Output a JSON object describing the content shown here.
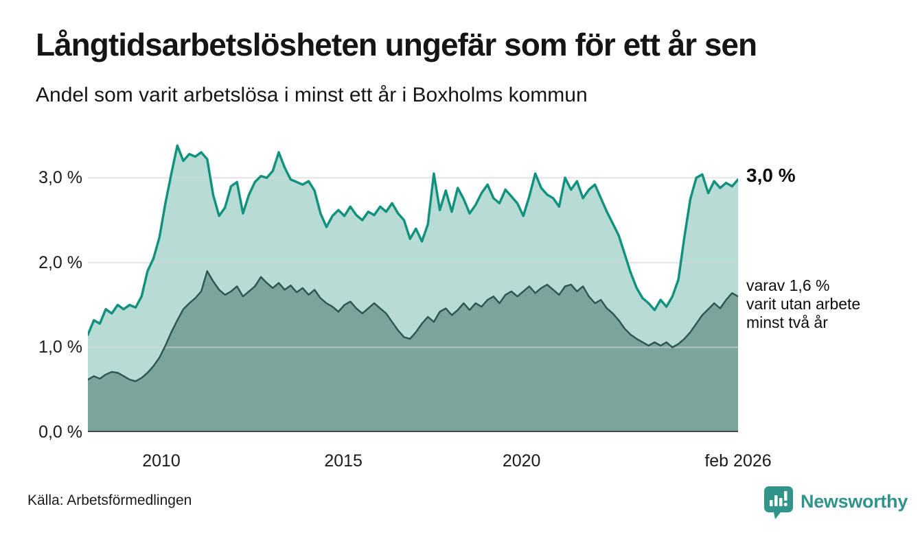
{
  "header": {
    "title": "Långtidsarbetslösheten ungefär som för ett år sen",
    "subtitle": "Andel som varit arbetslösa i minst ett år i Boxholms kommun"
  },
  "chart_data": {
    "type": "area",
    "title": "Långtidsarbetslösheten ungefär som för ett år sen",
    "subtitle": "Andel som varit arbetslösa i minst ett år i Boxholms kommun",
    "unit": "%",
    "x_start": "2008",
    "x_end": "feb 2026",
    "ylim": [
      0,
      3.56
    ],
    "grid": true,
    "grid_values": [
      1,
      2,
      3
    ],
    "grid_color": "#d6d6d6",
    "axis_color": "#474747",
    "yticks": [
      {
        "value": 0,
        "label": "0,0 %"
      },
      {
        "value": 1,
        "label": "1,0 %"
      },
      {
        "value": 2,
        "label": "2,0 %"
      },
      {
        "value": 3,
        "label": "3,0 %"
      }
    ],
    "xticks": [
      {
        "label": "2010",
        "f": 0.113
      },
      {
        "label": "2015",
        "f": 0.393
      },
      {
        "label": "2020",
        "f": 0.667
      },
      {
        "label": "feb 2026",
        "f": 1.0
      }
    ],
    "series": [
      {
        "name": "arbetslösa minst ett år",
        "line_color": "#12917f",
        "fill_color": "#b7dcd5",
        "line_width": 3.5,
        "latest_value": 3.0,
        "values": [
          1.15,
          1.32,
          1.28,
          1.45,
          1.4,
          1.5,
          1.45,
          1.5,
          1.47,
          1.6,
          1.9,
          2.05,
          2.3,
          2.7,
          3.05,
          3.38,
          3.2,
          3.28,
          3.25,
          3.3,
          3.22,
          2.8,
          2.55,
          2.65,
          2.9,
          2.95,
          2.58,
          2.8,
          2.95,
          3.02,
          3.0,
          3.08,
          3.3,
          3.12,
          2.98,
          2.95,
          2.92,
          2.96,
          2.85,
          2.58,
          2.42,
          2.55,
          2.62,
          2.55,
          2.66,
          2.56,
          2.5,
          2.6,
          2.56,
          2.66,
          2.6,
          2.7,
          2.58,
          2.5,
          2.28,
          2.4,
          2.25,
          2.45,
          3.05,
          2.62,
          2.85,
          2.6,
          2.88,
          2.75,
          2.58,
          2.68,
          2.82,
          2.92,
          2.76,
          2.7,
          2.86,
          2.78,
          2.7,
          2.55,
          2.78,
          3.05,
          2.88,
          2.8,
          2.76,
          2.66,
          3.0,
          2.86,
          2.96,
          2.76,
          2.86,
          2.92,
          2.76,
          2.6,
          2.46,
          2.32,
          2.1,
          1.88,
          1.7,
          1.58,
          1.52,
          1.44,
          1.56,
          1.48,
          1.6,
          1.8,
          2.3,
          2.75,
          3.0,
          3.04,
          2.82,
          2.96,
          2.88,
          2.94,
          2.9,
          2.98
        ]
      },
      {
        "name": "varav arbetslösa minst två år",
        "line_color": "#2e5751",
        "fill_color": "#7ba49c",
        "line_width": 2.5,
        "latest_value": 1.6,
        "values": [
          0.62,
          0.66,
          0.63,
          0.68,
          0.71,
          0.7,
          0.66,
          0.62,
          0.6,
          0.64,
          0.7,
          0.78,
          0.88,
          1.02,
          1.18,
          1.32,
          1.45,
          1.52,
          1.58,
          1.66,
          1.9,
          1.78,
          1.68,
          1.62,
          1.66,
          1.72,
          1.6,
          1.66,
          1.72,
          1.83,
          1.76,
          1.7,
          1.76,
          1.68,
          1.73,
          1.65,
          1.7,
          1.62,
          1.68,
          1.58,
          1.52,
          1.48,
          1.42,
          1.5,
          1.54,
          1.46,
          1.4,
          1.46,
          1.52,
          1.46,
          1.4,
          1.3,
          1.2,
          1.12,
          1.1,
          1.18,
          1.28,
          1.36,
          1.3,
          1.42,
          1.46,
          1.38,
          1.44,
          1.52,
          1.44,
          1.52,
          1.48,
          1.56,
          1.6,
          1.52,
          1.62,
          1.66,
          1.6,
          1.66,
          1.72,
          1.64,
          1.7,
          1.74,
          1.68,
          1.62,
          1.72,
          1.74,
          1.66,
          1.72,
          1.6,
          1.52,
          1.56,
          1.46,
          1.4,
          1.32,
          1.22,
          1.15,
          1.1,
          1.06,
          1.02,
          1.06,
          1.02,
          1.06,
          1.0,
          1.04,
          1.1,
          1.18,
          1.28,
          1.38,
          1.45,
          1.52,
          1.46,
          1.56,
          1.64,
          1.6
        ]
      }
    ],
    "annotations": {
      "latest_total": "3,0 %",
      "subseries_lines": [
        "varav 1,6 %",
        "varit utan arbete",
        "minst två år"
      ]
    }
  },
  "footer": {
    "source": "Källa: Arbetsförmedlingen",
    "logo_text": "Newsworthy",
    "logo_color": "#31948b"
  }
}
